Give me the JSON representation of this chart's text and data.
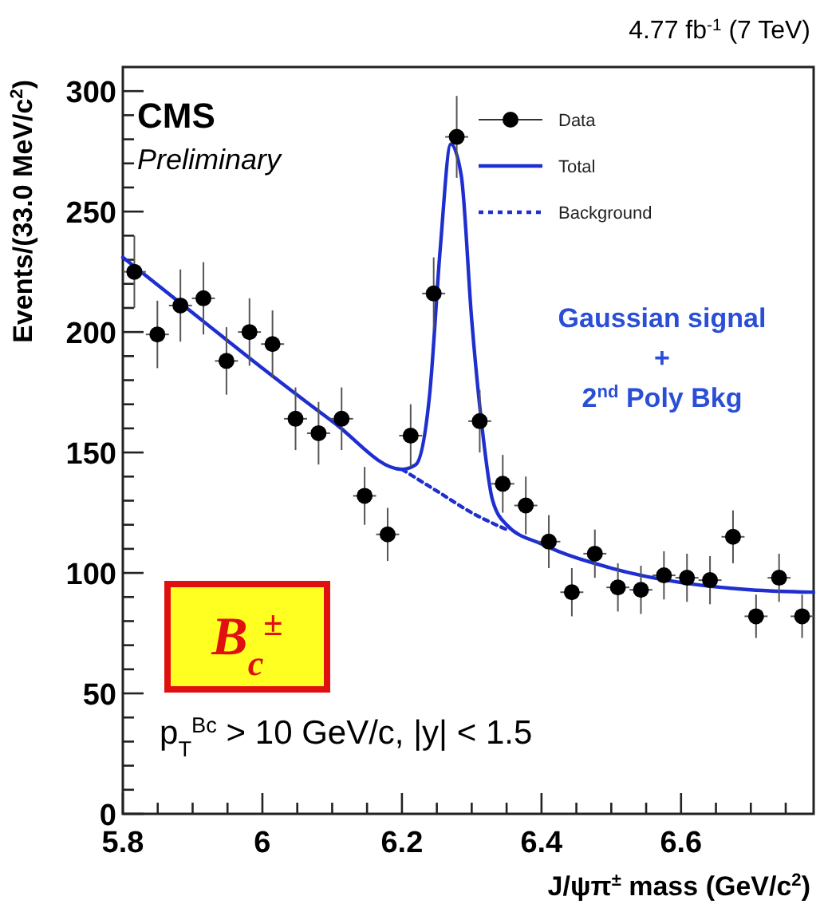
{
  "chart_data": {
    "type": "scatter",
    "title": "4.77 fb$^{-1}$ (7 TeV)",
    "xlabel": "J/ψπ$^{±}$ mass (GeV/c$^{2}$)",
    "ylabel": "Events/(33.0 MeV/c$^{2}$)",
    "xlim": [
      5.8,
      6.79
    ],
    "ylim": [
      0,
      310
    ],
    "xticks": [
      5.8,
      {
        "value": 5.85,
        "label": null
      },
      {
        "value": 5.9,
        "label": null
      },
      {
        "value": 5.95,
        "label": null
      },
      6,
      {
        "value": 6.05,
        "label": null
      },
      {
        "value": 6.1,
        "label": null
      },
      {
        "value": 6.15,
        "label": null
      },
      6.2,
      {
        "value": 6.25,
        "label": null
      },
      {
        "value": 6.3,
        "label": null
      },
      {
        "value": 6.35,
        "label": null
      },
      6.4,
      {
        "value": 6.45,
        "label": null
      },
      {
        "value": 6.5,
        "label": null
      },
      {
        "value": 6.55,
        "label": null
      },
      6.6,
      {
        "value": 6.65,
        "label": null
      },
      {
        "value": 6.7,
        "label": null
      },
      {
        "value": 6.75,
        "label": null
      }
    ],
    "yticks": [
      0,
      {
        "value": 10,
        "label": null
      },
      {
        "value": 20,
        "label": null
      },
      {
        "value": 30,
        "label": null
      },
      {
        "value": 40,
        "label": null
      },
      50,
      {
        "value": 60,
        "label": null
      },
      {
        "value": 70,
        "label": null
      },
      {
        "value": 80,
        "label": null
      },
      {
        "value": 90,
        "label": null
      },
      100,
      {
        "value": 110,
        "label": null
      },
      {
        "value": 120,
        "label": null
      },
      {
        "value": 130,
        "label": null
      },
      {
        "value": 140,
        "label": null
      },
      150,
      {
        "value": 160,
        "label": null
      },
      {
        "value": 170,
        "label": null
      },
      {
        "value": 180,
        "label": null
      },
      {
        "value": 190,
        "label": null
      },
      200,
      {
        "value": 210,
        "label": null
      },
      {
        "value": 220,
        "label": null
      },
      {
        "value": 230,
        "label": null
      },
      {
        "value": 240,
        "label": null
      },
      250,
      {
        "value": 260,
        "label": null
      },
      {
        "value": 270,
        "label": null
      },
      {
        "value": 280,
        "label": null
      },
      {
        "value": 290,
        "label": null
      },
      300
    ],
    "grid": false,
    "legend": "top right",
    "series": [
      {
        "name": "Data",
        "color": "#000000",
        "marker": "circle",
        "x": [
          5.8165,
          5.8495,
          5.8825,
          5.9155,
          5.9485,
          5.9815,
          6.0145,
          6.0475,
          6.0805,
          6.1135,
          6.1465,
          6.1795,
          6.2125,
          6.2455,
          6.2785,
          6.3115,
          6.3445,
          6.3775,
          6.4105,
          6.4435,
          6.4765,
          6.5095,
          6.5425,
          6.5755,
          6.6085,
          6.6415,
          6.6745,
          6.7075,
          6.7405,
          6.7735
        ],
        "values": [
          225,
          199,
          211,
          214,
          188,
          200,
          195,
          164,
          158,
          164,
          132,
          116,
          157,
          216,
          281,
          163,
          137,
          128,
          113,
          92,
          108,
          94,
          93,
          99,
          98,
          97,
          115,
          82,
          98,
          82
        ],
        "errors": [
          15,
          14,
          15,
          15,
          14,
          14,
          14,
          13,
          13,
          13,
          12,
          11,
          13,
          15,
          17,
          13,
          12,
          12,
          11,
          10,
          10,
          10,
          10,
          10,
          10,
          10,
          11,
          9,
          10,
          9
        ],
        "xerrors": [
          0.0165,
          0.0165,
          0.0165,
          0.0165,
          0.0165,
          0.0165,
          0.0165,
          0.0165,
          0.0165,
          0.0165,
          0.0165,
          0.0165,
          0.0165,
          0.0165,
          0.0165,
          0.0165,
          0.0165,
          0.0165,
          0.0165,
          0.0165,
          0.0165,
          0.0165,
          0.0165,
          0.0165,
          0.0165,
          0.0165,
          0.0165,
          0.0165,
          0.0165,
          0.0165
        ]
      },
      {
        "name": "Total",
        "type": "line",
        "color": "#1f2fcf",
        "line_style": "solid",
        "x": [
          5.8,
          5.9,
          6.0,
          6.1,
          6.2,
          6.22,
          6.24,
          6.255,
          6.27,
          6.285,
          6.3,
          6.315,
          6.33,
          6.35,
          6.4,
          6.5,
          6.6,
          6.7,
          6.79
        ],
        "values": [
          231,
          208,
          185,
          163,
          143,
          145,
          175,
          235,
          278,
          265,
          205,
          160,
          130,
          120,
          112,
          102,
          96,
          93,
          92
        ]
      },
      {
        "name": "Background",
        "type": "line",
        "color": "#1f2fcf",
        "line_style": "dotted",
        "x": [
          6.2,
          6.25,
          6.3,
          6.35
        ],
        "values": [
          143,
          134,
          125,
          118
        ]
      }
    ],
    "annotations": [
      "CMS",
      "Preliminary",
      "Gaussian signal",
      "+",
      "2$^{nd}$ Poly Bkg",
      "B$_{c}$$^{±}$",
      "p$_{T}$$^{Bc}$ > 10 GeV/c, |y| < 1.5"
    ]
  }
}
